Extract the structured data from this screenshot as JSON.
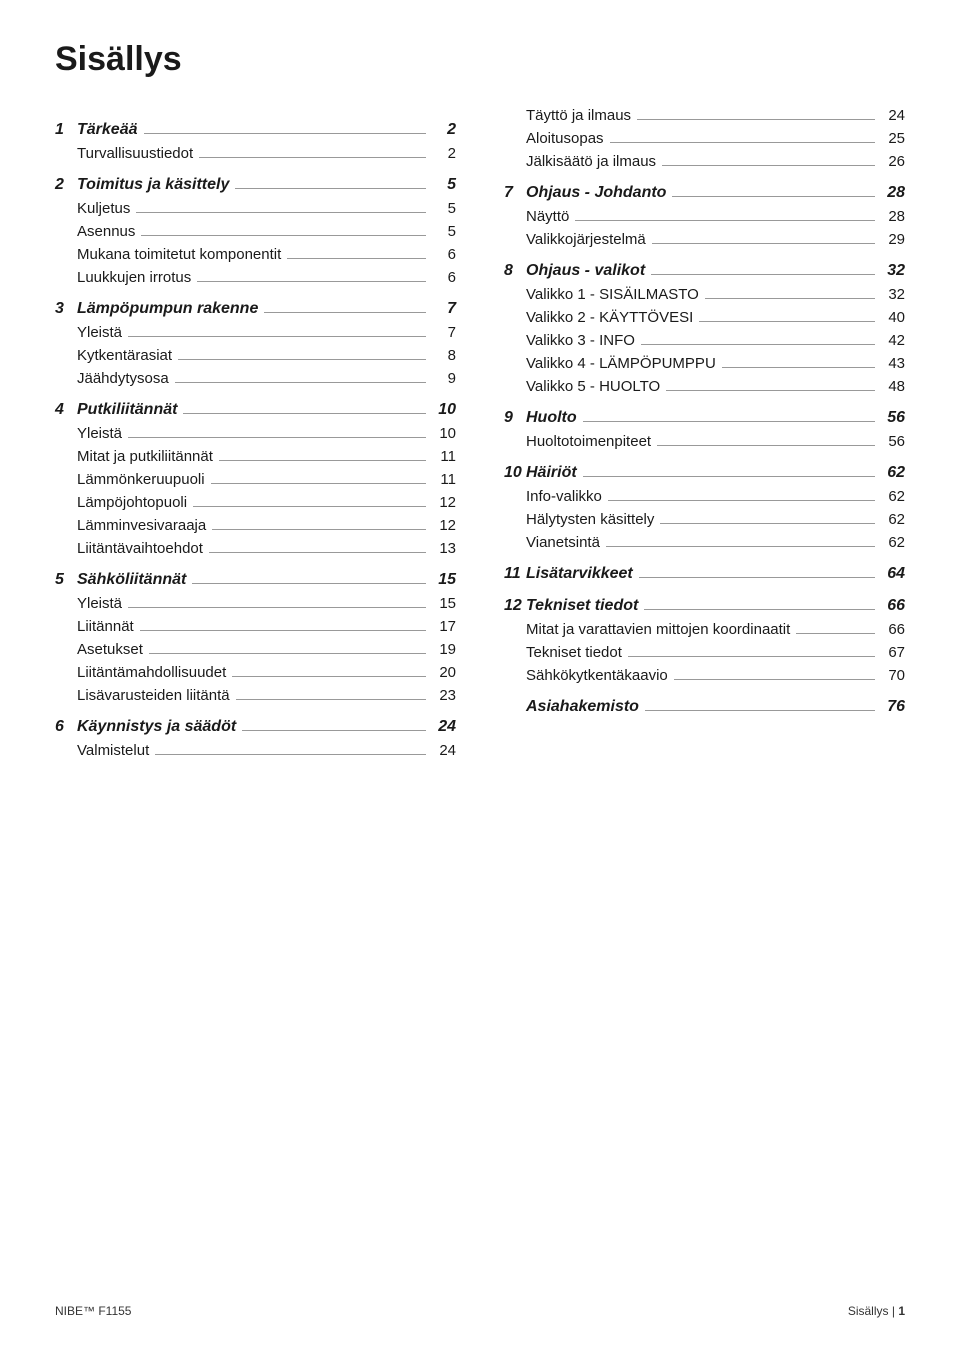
{
  "title": "Sisällys",
  "footer": {
    "left": "NIBE™ F1155",
    "right_label": "Sisällys |",
    "right_page": "1"
  },
  "left": [
    {
      "type": "section",
      "num": "1",
      "label": "Tärkeää",
      "page": "2"
    },
    {
      "type": "sub",
      "label": "Turvallisuustiedot",
      "page": "2"
    },
    {
      "type": "section",
      "num": "2",
      "label": "Toimitus ja käsittely",
      "page": "5"
    },
    {
      "type": "sub",
      "label": "Kuljetus",
      "page": "5"
    },
    {
      "type": "sub",
      "label": "Asennus",
      "page": "5"
    },
    {
      "type": "sub",
      "label": "Mukana toimitetut komponentit",
      "page": "6"
    },
    {
      "type": "sub",
      "label": "Luukkujen irrotus",
      "page": "6"
    },
    {
      "type": "section",
      "num": "3",
      "label": "Lämpöpumpun rakenne",
      "page": "7"
    },
    {
      "type": "sub",
      "label": "Yleistä",
      "page": "7"
    },
    {
      "type": "sub",
      "label": "Kytkentärasiat",
      "page": "8"
    },
    {
      "type": "sub",
      "label": "Jäähdytysosa",
      "page": "9"
    },
    {
      "type": "section",
      "num": "4",
      "label": "Putkiliitännät",
      "page": "10"
    },
    {
      "type": "sub",
      "label": "Yleistä",
      "page": "10"
    },
    {
      "type": "sub",
      "label": "Mitat ja putkiliitännät",
      "page": "11"
    },
    {
      "type": "sub",
      "label": "Lämmönkeruupuoli",
      "page": "11"
    },
    {
      "type": "sub",
      "label": "Lämpöjohtopuoli",
      "page": "12"
    },
    {
      "type": "sub",
      "label": "Lämminvesivaraaja",
      "page": "12"
    },
    {
      "type": "sub",
      "label": "Liitäntävaihtoehdot",
      "page": "13"
    },
    {
      "type": "section",
      "num": "5",
      "label": "Sähköliitännät",
      "page": "15"
    },
    {
      "type": "sub",
      "label": "Yleistä",
      "page": "15"
    },
    {
      "type": "sub",
      "label": "Liitännät",
      "page": "17"
    },
    {
      "type": "sub",
      "label": "Asetukset",
      "page": "19"
    },
    {
      "type": "sub",
      "label": "Liitäntämahdollisuudet",
      "page": "20"
    },
    {
      "type": "sub",
      "label": "Lisävarusteiden liitäntä",
      "page": "23"
    },
    {
      "type": "section",
      "num": "6",
      "label": "Käynnistys ja säädöt",
      "page": "24"
    },
    {
      "type": "sub",
      "label": "Valmistelut",
      "page": "24"
    }
  ],
  "right": [
    {
      "type": "sub",
      "label": "Täyttö ja ilmaus",
      "page": "24"
    },
    {
      "type": "sub",
      "label": "Aloitusopas",
      "page": "25"
    },
    {
      "type": "sub",
      "label": "Jälkisäätö ja ilmaus",
      "page": "26"
    },
    {
      "type": "section",
      "num": "7",
      "label": "Ohjaus - Johdanto",
      "page": "28"
    },
    {
      "type": "sub",
      "label": "Näyttö",
      "page": "28"
    },
    {
      "type": "sub",
      "label": "Valikkojärjestelmä",
      "page": "29"
    },
    {
      "type": "section",
      "num": "8",
      "label": "Ohjaus - valikot",
      "page": "32"
    },
    {
      "type": "sub",
      "label": "Valikko 1 - SISÄILMASTO",
      "page": "32"
    },
    {
      "type": "sub",
      "label": "Valikko 2 - KÄYTTÖVESI",
      "page": "40"
    },
    {
      "type": "sub",
      "label": "Valikko 3 - INFO",
      "page": "42"
    },
    {
      "type": "sub",
      "label": "Valikko 4 - LÄMPÖPUMPPU",
      "page": "43"
    },
    {
      "type": "sub",
      "label": "Valikko 5 - HUOLTO",
      "page": "48"
    },
    {
      "type": "section",
      "num": "9",
      "label": "Huolto",
      "page": "56"
    },
    {
      "type": "sub",
      "label": "Huoltotoimenpiteet",
      "page": "56"
    },
    {
      "type": "section",
      "num": "10",
      "label": "Häiriöt",
      "page": "62"
    },
    {
      "type": "sub",
      "label": "Info-valikko",
      "page": "62"
    },
    {
      "type": "sub",
      "label": "Hälytysten käsittely",
      "page": "62"
    },
    {
      "type": "sub",
      "label": "Vianetsintä",
      "page": "62"
    },
    {
      "type": "section",
      "num": "11",
      "label": "Lisätarvikkeet",
      "page": "64"
    },
    {
      "type": "section",
      "num": "12",
      "label": "Tekniset tiedot",
      "page": "66"
    },
    {
      "type": "sub",
      "label": "Mitat ja varattavien mittojen koordinaatit",
      "page": "66"
    },
    {
      "type": "sub",
      "label": "Tekniset tiedot",
      "page": "67"
    },
    {
      "type": "sub",
      "label": "Sähkökytkentäkaavio",
      "page": "70"
    },
    {
      "type": "section",
      "num": "",
      "label": "Asiahakemisto",
      "page": "76"
    }
  ]
}
